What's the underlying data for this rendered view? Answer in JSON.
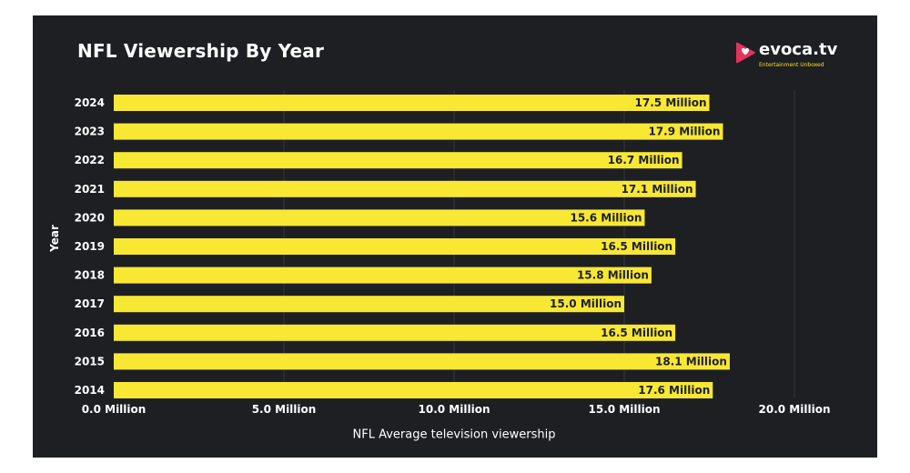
{
  "brand": {
    "name": "evoca.tv",
    "tagline": "Entertainment Unboxed",
    "logo_icon": "play-heart-icon"
  },
  "colors": {
    "panel": "#1d1f23",
    "bar": "#f9e833",
    "grid": "#34373d",
    "text": "#ffffff",
    "bar_text": "#1d1f23",
    "accent": "#e2355b"
  },
  "chart_data": {
    "type": "bar",
    "orientation": "horizontal",
    "title": "NFL Viewership By Year",
    "xlabel": "NFL Average television viewership",
    "ylabel": "Year",
    "categories": [
      "2024",
      "2023",
      "2022",
      "2021",
      "2020",
      "2019",
      "2018",
      "2017",
      "2016",
      "2015",
      "2014"
    ],
    "values": [
      17.5,
      17.9,
      16.7,
      17.1,
      15.6,
      16.5,
      15.8,
      15.0,
      16.5,
      18.1,
      17.6
    ],
    "value_labels": [
      "17.5 Million",
      "17.9 Million",
      "16.7 Million",
      "17.1 Million",
      "15.6 Million",
      "16.5 Million",
      "15.8 Million",
      "15.0 Million",
      "16.5 Million",
      "18.1 Million",
      "17.6 Million"
    ],
    "unit": "Million",
    "xlim": [
      0,
      20
    ],
    "xticks": [
      0,
      5,
      10,
      15,
      20
    ],
    "xtick_labels": [
      "0.0 Million",
      "5.0 Million",
      "10.0 Million",
      "15.0 Million",
      "20.0 Million"
    ],
    "grid": "vertical"
  }
}
